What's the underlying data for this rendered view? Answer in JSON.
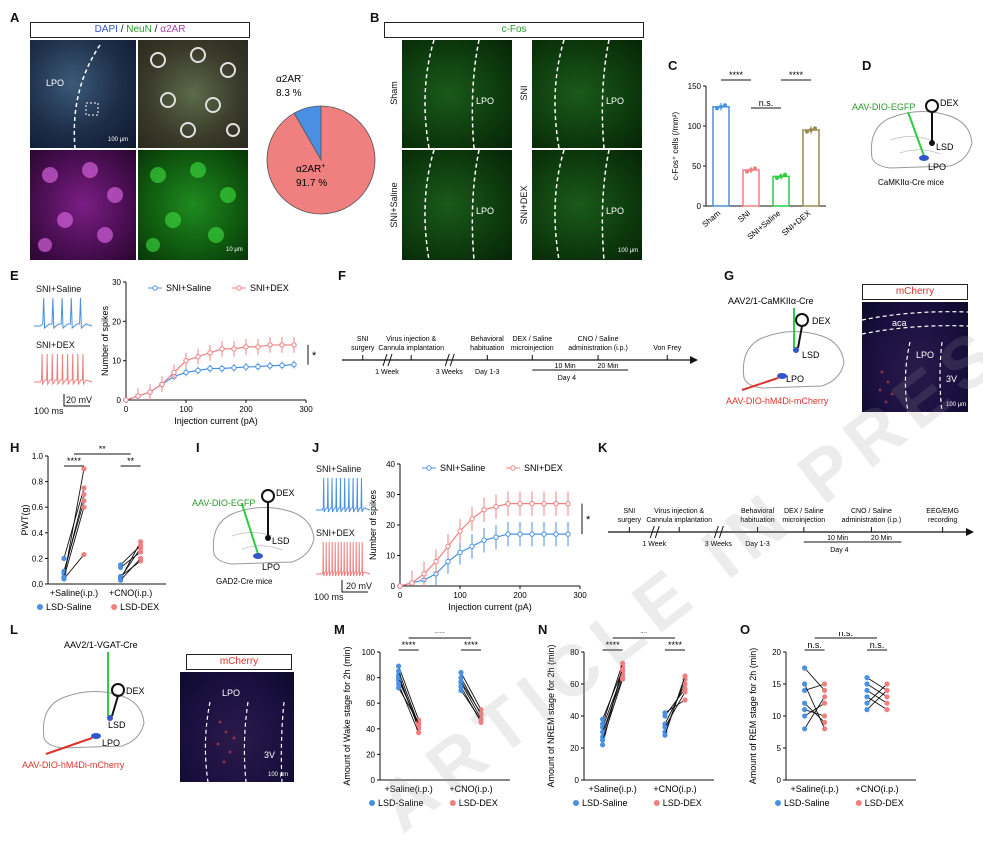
{
  "panels": {
    "A": {
      "letter": "A",
      "header": "DAPI / NeuN / α2AR",
      "header_parts": [
        "DAPI",
        " / ",
        "NeuN",
        " / ",
        "α2AR"
      ],
      "region_label": "LPO",
      "scale1": "100 μm",
      "scale2": "10 μm",
      "pie_neg_label": "α2AR",
      "pie_neg_sup": "-",
      "pie_neg_value": "8.3 %",
      "pie_pos_label": "α2AR",
      "pie_pos_sup": "+",
      "pie_pos_value": "91.7 %"
    },
    "B": {
      "letter": "B",
      "header": "c-Fos",
      "groups": [
        "Sham",
        "SNI",
        "SNI+Saline",
        "SNI+DEX"
      ],
      "region_label": "LPO",
      "scale": "100 μm"
    },
    "C": {
      "letter": "C",
      "ylabel": "c-Fos⁺ cells (/mm²)",
      "sig1": "****",
      "sig2": "n.s.",
      "sig3": "****"
    },
    "D": {
      "letter": "D",
      "virus": "AAV-DIO-EGFP",
      "drug": "DEX",
      "lsd": "LSD",
      "lpo": "LPO",
      "mouse": "CaMKIIα-Cre mice"
    },
    "E": {
      "letter": "E",
      "trace1": "SNI+Saline",
      "trace2": "SNI+DEX",
      "scale_ms": "100 ms",
      "scale_mv": "20 mV",
      "legend1": "SNI+Saline",
      "legend2": "SNI+DEX",
      "ylabel": "Number of spikes",
      "xlabel": "Injection current (pA)",
      "sig": "*"
    },
    "F": {
      "letter": "F",
      "events": [
        "SNI\nsurgery",
        "Virus injection &\nCannula implantation",
        "Behavioral\nhabituation",
        "DEX / Saline\nmicroinjection",
        "CNO / Saline\nadministration (i.p.)",
        "Von Frey"
      ],
      "below": [
        "1 Week",
        "3 Weeks",
        "Day 1-3",
        "Day 4"
      ],
      "min1": "10 Min",
      "min2": "20 Min"
    },
    "G": {
      "letter": "G",
      "virus1": "AAV2/1-CaMKIIα-Cre",
      "drug": "DEX",
      "lsd": "LSD",
      "lpo": "LPO",
      "virus2": "AAV-DIO-hM4Di-mCherry",
      "header": "mCherry",
      "aca": "aca",
      "region": "LPO",
      "v3": "3V",
      "scale": "100 μm"
    },
    "H": {
      "letter": "H",
      "ylabel": "PWT(g)",
      "x1": "+Saline(i.p.)",
      "x2": "+CNO(i.p.)",
      "legend1": "LSD-Saline",
      "legend2": "LSD-DEX",
      "sig1": "****",
      "sig2": "**",
      "sig3": "**"
    },
    "I": {
      "letter": "I",
      "virus": "AAV-DIO-EGFP",
      "drug": "DEX",
      "lsd": "LSD",
      "lpo": "LPO",
      "mouse": "GAD2-Cre mice"
    },
    "J": {
      "letter": "J",
      "trace1": "SNI+Saline",
      "trace2": "SNI+DEX",
      "scale_ms": "100 ms",
      "scale_mv": "20 mV",
      "legend1": "SNI+Saline",
      "legend2": "SNI+DEX",
      "ylabel": "Number of spikes",
      "xlabel": "Injection current (pA)",
      "sig": "*"
    },
    "K": {
      "letter": "K",
      "events": [
        "SNI\nsurgery",
        "Virus injection &\nCannula implantation",
        "Behavioral\nhabituation",
        "DEX / Saline\nmicroinjection",
        "CNO / Saline\nadministration (i.p.)",
        "EEG/EMG\nrecording"
      ],
      "below": [
        "1 Week",
        "3 Weeks",
        "Day 1-3",
        "Day 4"
      ],
      "min1": "10 Min",
      "min2": "20 Min"
    },
    "L": {
      "letter": "L",
      "virus1": "AAV2/1-VGAT-Cre",
      "drug": "DEX",
      "lsd": "LSD",
      "lpo": "LPO",
      "virus2": "AAV-DIO-hM4Di-mCherry",
      "header": "mCherry",
      "region": "LPO",
      "v3": "3V",
      "scale": "100 μm"
    },
    "M": {
      "letter": "M",
      "ylabel": "Amount of Wake stage for 2h (min)",
      "x1": "+Saline(i.p.)",
      "x2": "+CNO(i.p.)",
      "legend1": "LSD-Saline",
      "legend2": "LSD-DEX",
      "sig1": "****",
      "sig2": "***",
      "sig3": "****"
    },
    "N": {
      "letter": "N",
      "ylabel": "Amount of NREM stage for 2h (min)",
      "x1": "+Saline(i.p.)",
      "x2": "+CNO(i.p.)",
      "legend1": "LSD-Saline",
      "legend2": "LSD-DEX",
      "sig1": "****",
      "sig2": "**",
      "sig3": "****"
    },
    "O": {
      "letter": "O",
      "ylabel": "Amount of REM stage for 2h (min)",
      "x1": "+Saline(i.p.)",
      "x2": "+CNO(i.p.)",
      "legend1": "LSD-Saline",
      "legend2": "LSD-DEX",
      "sig1": "n.s.",
      "sig2": "n.s.",
      "sig3": "n.s."
    }
  },
  "colors": {
    "blue": "#4a90e2",
    "red": "#f08080",
    "green": "#2ecc40",
    "olive": "#9a8a52",
    "magenta": "#c040c0"
  },
  "watermark": "ARTICLE IN PRESS",
  "chart_data": [
    {
      "id": "A-pie",
      "type": "pie",
      "labels": [
        "α2AR-",
        "α2AR+"
      ],
      "values": [
        8.3,
        91.7
      ],
      "colors": [
        "#4a90e2",
        "#f08080"
      ]
    },
    {
      "id": "C",
      "type": "bar",
      "categories": [
        "Sham",
        "SNI",
        "SNI+Saline",
        "SNI+DEX"
      ],
      "values": [
        124,
        45,
        37,
        95
      ],
      "errors": [
        5,
        4,
        4,
        5
      ],
      "ylim": [
        0,
        150
      ],
      "yticks": [
        0,
        50,
        100,
        150
      ],
      "colors": [
        "#4a90e2",
        "#f08080",
        "#2ecc40",
        "#9a8a52"
      ],
      "ylabel": "c-Fos⁺ cells (/mm²)"
    },
    {
      "id": "E",
      "type": "line",
      "x": [
        0,
        20,
        40,
        60,
        80,
        100,
        120,
        140,
        160,
        180,
        200,
        220,
        240,
        260,
        280
      ],
      "series": [
        {
          "name": "SNI+Saline",
          "values": [
            0,
            1,
            2,
            4,
            6,
            7,
            7.5,
            8,
            8,
            8.2,
            8.4,
            8.5,
            8.7,
            8.8,
            9
          ],
          "err": 1
        },
        {
          "name": "SNI+DEX",
          "values": [
            0,
            1,
            2,
            4,
            7,
            10,
            11,
            12,
            13,
            13,
            13.5,
            13.5,
            14,
            14,
            14
          ],
          "err": 2
        }
      ],
      "xlim": [
        0,
        300
      ],
      "ylim": [
        0,
        30
      ],
      "xticks": [
        0,
        100,
        200,
        300
      ],
      "yticks": [
        0,
        10,
        20,
        30
      ],
      "xlabel": "Injection current (pA)",
      "ylabel": "Number of spikes"
    },
    {
      "id": "J",
      "type": "line",
      "x": [
        0,
        20,
        40,
        60,
        80,
        100,
        120,
        140,
        160,
        180,
        200,
        220,
        240,
        260,
        280
      ],
      "series": [
        {
          "name": "SNI+Saline",
          "values": [
            0,
            1,
            2,
            4,
            8,
            11,
            13,
            15,
            16,
            17,
            17,
            17,
            17,
            17,
            17
          ],
          "err": 4
        },
        {
          "name": "SNI+DEX",
          "values": [
            0,
            1,
            4,
            8,
            13,
            18,
            22,
            25,
            26,
            27,
            27,
            27,
            27,
            27,
            27
          ],
          "err": 4
        }
      ],
      "xlim": [
        0,
        300
      ],
      "ylim": [
        0,
        40
      ],
      "xticks": [
        0,
        100,
        200,
        300
      ],
      "yticks": [
        0,
        10,
        20,
        30,
        40
      ],
      "xlabel": "Injection current (pA)",
      "ylabel": "Number of spikes"
    },
    {
      "id": "H",
      "type": "scatter",
      "ylim": [
        0,
        1.0
      ],
      "yticks": [
        0.0,
        0.2,
        0.4,
        0.6,
        0.8,
        1.0
      ],
      "pairs": {
        "saline": [
          [
            0.05,
            0.9
          ],
          [
            0.2,
            0.75
          ],
          [
            0.08,
            0.7
          ],
          [
            0.1,
            0.65
          ],
          [
            0.04,
            0.23
          ],
          [
            0.05,
            0.6
          ]
        ],
        "cno": [
          [
            0.04,
            0.33
          ],
          [
            0.05,
            0.28
          ],
          [
            0.15,
            0.3
          ],
          [
            0.13,
            0.25
          ],
          [
            0.06,
            0.18
          ],
          [
            0.03,
            0.2
          ]
        ]
      }
    },
    {
      "id": "M",
      "type": "scatter",
      "ylim": [
        0,
        100
      ],
      "yticks": [
        0,
        20,
        40,
        60,
        80,
        100
      ],
      "pairs": {
        "saline": [
          [
            89,
            47
          ],
          [
            82,
            40
          ],
          [
            78,
            44
          ],
          [
            80,
            42
          ],
          [
            75,
            37
          ],
          [
            72,
            45
          ],
          [
            85,
            43
          ]
        ],
        "cno": [
          [
            84,
            55
          ],
          [
            80,
            51
          ],
          [
            76,
            48
          ],
          [
            73,
            45
          ],
          [
            77,
            52
          ],
          [
            70,
            47
          ]
        ]
      }
    },
    {
      "id": "N",
      "type": "scatter",
      "ylim": [
        0,
        80
      ],
      "yticks": [
        0,
        20,
        40,
        60,
        80
      ],
      "pairs": {
        "saline": [
          [
            22,
            71
          ],
          [
            27,
            68
          ],
          [
            33,
            66
          ],
          [
            35,
            73
          ],
          [
            30,
            64
          ],
          [
            38,
            69
          ],
          [
            25,
            63
          ]
        ],
        "cno": [
          [
            30,
            63
          ],
          [
            35,
            60
          ],
          [
            40,
            57
          ],
          [
            33,
            55
          ],
          [
            28,
            65
          ],
          [
            42,
            50
          ]
        ]
      }
    },
    {
      "id": "O",
      "type": "scatter",
      "ylim": [
        0,
        20
      ],
      "yticks": [
        0,
        5,
        10,
        15,
        20
      ],
      "pairs": {
        "saline": [
          [
            17.5,
            14
          ],
          [
            14,
            15
          ],
          [
            12,
            9
          ],
          [
            10,
            12
          ],
          [
            8,
            13
          ],
          [
            15,
            8
          ],
          [
            11,
            10
          ]
        ],
        "cno": [
          [
            16,
            14
          ],
          [
            14,
            12
          ],
          [
            12,
            15
          ],
          [
            13,
            11
          ],
          [
            15,
            13
          ],
          [
            11,
            14
          ]
        ]
      }
    }
  ]
}
